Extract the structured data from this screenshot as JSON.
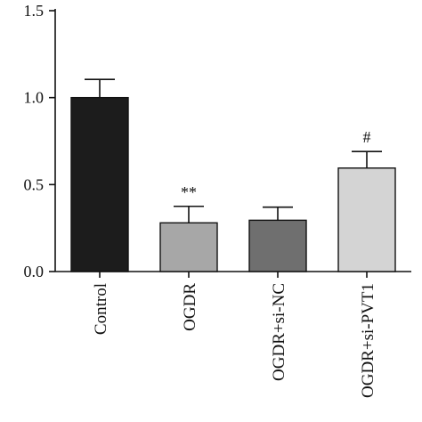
{
  "chart_data": {
    "type": "bar",
    "categories": [
      "Control",
      "OGDR",
      "OGDR+si-NC",
      "OGDR+si-PVT1"
    ],
    "values": [
      1.0,
      0.28,
      0.295,
      0.595
    ],
    "errors": [
      0.105,
      0.095,
      0.075,
      0.095
    ],
    "annotations": [
      "",
      "**",
      "",
      "#"
    ],
    "colors": [
      "#1c1c1c",
      "#a7a7a7",
      "#6f6f6f",
      "#d4d4d4"
    ],
    "ylim": [
      0,
      1.5
    ],
    "yticks": [
      "0.0",
      "0.5",
      "1.0",
      "1.5"
    ],
    "yticks_values": [
      0.0,
      0.5,
      1.0,
      1.5
    ],
    "title": "",
    "xlabel": "",
    "ylabel": "",
    "grid": false
  }
}
